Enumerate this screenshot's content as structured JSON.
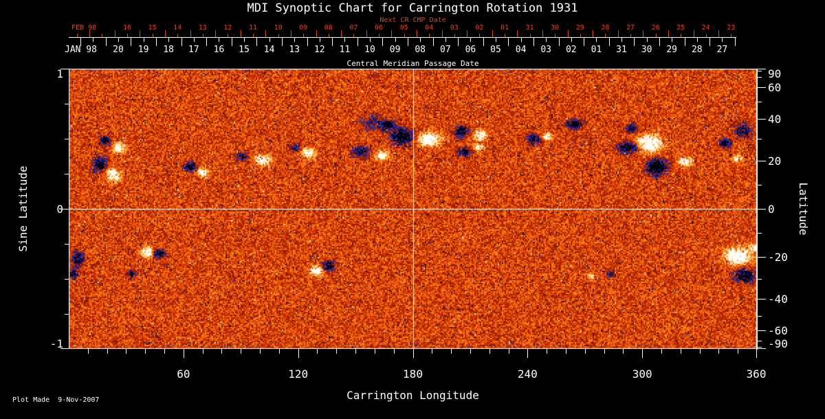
{
  "title": "MDI Synoptic Chart for Carrington Rotation 1931",
  "colors": {
    "background": "#000000",
    "accent_red": "#e2461c",
    "text": "#ffffff",
    "crosshair": "#ffffff"
  },
  "top_axis": {
    "label": "Next CR CMP Date",
    "month": "FEB 98",
    "dates": [
      "16",
      "15",
      "14",
      "13",
      "12",
      "11",
      "10",
      "09",
      "08",
      "07",
      "06",
      "05",
      "04",
      "03",
      "02",
      "01",
      "31",
      "30",
      "29",
      "28",
      "27",
      "26",
      "25",
      "24",
      "23"
    ]
  },
  "cmp_axis": {
    "label": "Central Meridian Passage Date",
    "month": "JAN 98",
    "dates": [
      "20",
      "19",
      "18",
      "17",
      "16",
      "15",
      "14",
      "13",
      "12",
      "11",
      "10",
      "09",
      "08",
      "07",
      "06",
      "05",
      "04",
      "03",
      "02",
      "01",
      "31",
      "30",
      "29",
      "28",
      "27"
    ]
  },
  "left_axis": {
    "label": "Sine Latitude",
    "ticks": [
      "1",
      "0",
      "-1"
    ]
  },
  "right_axis": {
    "label": "Latitude",
    "ticks": [
      "90",
      "60",
      "40",
      "20",
      "0",
      "-20",
      "-40",
      "-60",
      "-90"
    ]
  },
  "bottom_axis": {
    "label": "Carrington Longitude",
    "ticks": [
      "60",
      "120",
      "180",
      "240",
      "300",
      "360"
    ]
  },
  "footer": {
    "note": "Plot Made  9-Nov-2007"
  },
  "chart_data": {
    "type": "heatmap",
    "title": "MDI Synoptic Chart for Carrington Rotation 1931",
    "xlabel": "Carrington Longitude",
    "ylabel_left": "Sine Latitude",
    "ylabel_right": "Latitude",
    "x_range_deg": [
      0,
      360
    ],
    "y_range_sine_lat": [
      -1,
      1
    ],
    "x_major_ticks_deg": [
      60,
      120,
      180,
      240,
      300,
      360
    ],
    "right_major_ticks_lat": [
      90,
      60,
      40,
      20,
      0,
      -20,
      -40,
      -60,
      -90
    ],
    "crosshair": {
      "vertical_line_lon_deg": 180,
      "horizontal_line_sine_lat": 0
    },
    "field": "line-of-sight photospheric magnetic flux; orange/red granular noise background, white = positive polarity plage, dark blue/black = negative polarity",
    "palette": {
      "strong_negative": [
        "#000006",
        "#0b0b3e",
        "#1c1c80",
        "#3030a8"
      ],
      "quiet_sun": [
        "#8a1600",
        "#a32000",
        "#bd2b00",
        "#d23a02",
        "#e24b07",
        "#ee5d0d",
        "#f66f13",
        "#fb831c",
        "#ffa02e"
      ],
      "strong_positive": [
        "#ffbf55",
        "#ffd98a",
        "#ffecc0",
        "#fff8e8",
        "#ffffff"
      ]
    },
    "active_regions": [
      {
        "lon": 19,
        "sine_lat": 0.49,
        "polarity": "negative",
        "strength": 1.0,
        "half_width_deg": 2.5,
        "half_height_sine": 0.03
      },
      {
        "lon": 26,
        "sine_lat": 0.44,
        "polarity": "positive",
        "strength": 1.05,
        "half_width_deg": 2.9,
        "half_height_sine": 0.03
      },
      {
        "lon": 16,
        "sine_lat": 0.32,
        "polarity": "negative",
        "strength": 1.1,
        "half_width_deg": 3.2,
        "half_height_sine": 0.044
      },
      {
        "lon": 23,
        "sine_lat": 0.25,
        "polarity": "positive",
        "strength": 1.1,
        "half_width_deg": 3.2,
        "half_height_sine": 0.04
      },
      {
        "lon": 63,
        "sine_lat": 0.3,
        "polarity": "negative",
        "strength": 0.95,
        "half_width_deg": 2.9,
        "half_height_sine": 0.03
      },
      {
        "lon": 70,
        "sine_lat": 0.27,
        "polarity": "positive",
        "strength": 0.95,
        "half_width_deg": 2.9,
        "half_height_sine": 0.03
      },
      {
        "lon": 90,
        "sine_lat": 0.37,
        "polarity": "negative",
        "strength": 0.8,
        "half_width_deg": 2.5,
        "half_height_sine": 0.025
      },
      {
        "lon": 101,
        "sine_lat": 0.35,
        "polarity": "positive",
        "strength": 1.05,
        "half_width_deg": 3.6,
        "half_height_sine": 0.034
      },
      {
        "lon": 118,
        "sine_lat": 0.44,
        "polarity": "negative",
        "strength": 0.7,
        "half_width_deg": 2.5,
        "half_height_sine": 0.025
      },
      {
        "lon": 125,
        "sine_lat": 0.4,
        "polarity": "positive",
        "strength": 1.05,
        "half_width_deg": 3.2,
        "half_height_sine": 0.032
      },
      {
        "lon": 152,
        "sine_lat": 0.41,
        "polarity": "negative",
        "strength": 0.8,
        "half_width_deg": 4.0,
        "half_height_sine": 0.038
      },
      {
        "lon": 158,
        "sine_lat": 0.62,
        "polarity": "negative",
        "strength": 0.45,
        "half_width_deg": 6.0,
        "half_height_sine": 0.05
      },
      {
        "lon": 166,
        "sine_lat": 0.6,
        "polarity": "negative",
        "strength": 0.85,
        "half_width_deg": 4.0,
        "half_height_sine": 0.035
      },
      {
        "lon": 174,
        "sine_lat": 0.52,
        "polarity": "negative",
        "strength": 1.25,
        "half_width_deg": 5.0,
        "half_height_sine": 0.05
      },
      {
        "lon": 163,
        "sine_lat": 0.38,
        "polarity": "positive",
        "strength": 0.9,
        "half_width_deg": 3.2,
        "half_height_sine": 0.032
      },
      {
        "lon": 188,
        "sine_lat": 0.5,
        "polarity": "positive",
        "strength": 1.2,
        "half_width_deg": 5.4,
        "half_height_sine": 0.045
      },
      {
        "lon": 205,
        "sine_lat": 0.56,
        "polarity": "negative",
        "strength": 1.0,
        "half_width_deg": 3.6,
        "half_height_sine": 0.034
      },
      {
        "lon": 215,
        "sine_lat": 0.53,
        "polarity": "positive",
        "strength": 1.0,
        "half_width_deg": 3.2,
        "half_height_sine": 0.034
      },
      {
        "lon": 206,
        "sine_lat": 0.41,
        "polarity": "negative",
        "strength": 0.9,
        "half_width_deg": 3.2,
        "half_height_sine": 0.03
      },
      {
        "lon": 214,
        "sine_lat": 0.44,
        "polarity": "positive",
        "strength": 0.8,
        "half_width_deg": 2.5,
        "half_height_sine": 0.025
      },
      {
        "lon": 243,
        "sine_lat": 0.5,
        "polarity": "negative",
        "strength": 0.9,
        "half_width_deg": 3.2,
        "half_height_sine": 0.034
      },
      {
        "lon": 249,
        "sine_lat": 0.52,
        "polarity": "positive",
        "strength": 0.85,
        "half_width_deg": 2.5,
        "half_height_sine": 0.025
      },
      {
        "lon": 264,
        "sine_lat": 0.61,
        "polarity": "negative",
        "strength": 1.0,
        "half_width_deg": 4.3,
        "half_height_sine": 0.03
      },
      {
        "lon": 292,
        "sine_lat": 0.44,
        "polarity": "negative",
        "strength": 1.1,
        "half_width_deg": 5.0,
        "half_height_sine": 0.034
      },
      {
        "lon": 303,
        "sine_lat": 0.47,
        "polarity": "positive",
        "strength": 1.3,
        "half_width_deg": 5.8,
        "half_height_sine": 0.054
      },
      {
        "lon": 307,
        "sine_lat": 0.3,
        "polarity": "negative",
        "strength": 1.35,
        "half_width_deg": 4.7,
        "half_height_sine": 0.052
      },
      {
        "lon": 322,
        "sine_lat": 0.34,
        "polarity": "positive",
        "strength": 0.85,
        "half_width_deg": 3.6,
        "half_height_sine": 0.03
      },
      {
        "lon": 294,
        "sine_lat": 0.58,
        "polarity": "negative",
        "strength": 0.7,
        "half_width_deg": 3.2,
        "half_height_sine": 0.03
      },
      {
        "lon": 343,
        "sine_lat": 0.47,
        "polarity": "negative",
        "strength": 0.9,
        "half_width_deg": 2.9,
        "half_height_sine": 0.034
      },
      {
        "lon": 349,
        "sine_lat": 0.36,
        "polarity": "positive",
        "strength": 0.8,
        "half_width_deg": 2.2,
        "half_height_sine": 0.025
      },
      {
        "lon": 352,
        "sine_lat": 0.56,
        "polarity": "negative",
        "strength": 0.7,
        "half_width_deg": 4.3,
        "half_height_sine": 0.05
      },
      {
        "lon": 4,
        "sine_lat": -0.35,
        "polarity": "negative",
        "strength": 0.9,
        "half_width_deg": 2.9,
        "half_height_sine": 0.05
      },
      {
        "lon": 2,
        "sine_lat": -0.46,
        "polarity": "negative",
        "strength": 0.8,
        "half_width_deg": 2.2,
        "half_height_sine": 0.03
      },
      {
        "lon": 41,
        "sine_lat": -0.3,
        "polarity": "positive",
        "strength": 1.1,
        "half_width_deg": 3.2,
        "half_height_sine": 0.034
      },
      {
        "lon": 47,
        "sine_lat": -0.31,
        "polarity": "negative",
        "strength": 1.0,
        "half_width_deg": 2.9,
        "half_height_sine": 0.03
      },
      {
        "lon": 32,
        "sine_lat": -0.46,
        "polarity": "negative",
        "strength": 0.8,
        "half_width_deg": 1.8,
        "half_height_sine": 0.025
      },
      {
        "lon": 129,
        "sine_lat": -0.44,
        "polarity": "positive",
        "strength": 1.1,
        "half_width_deg": 3.2,
        "half_height_sine": 0.034
      },
      {
        "lon": 135,
        "sine_lat": -0.4,
        "polarity": "negative",
        "strength": 1.0,
        "half_width_deg": 3.2,
        "half_height_sine": 0.034
      },
      {
        "lon": 283,
        "sine_lat": -0.46,
        "polarity": "negative",
        "strength": 0.7,
        "half_width_deg": 2.2,
        "half_height_sine": 0.025
      },
      {
        "lon": 272,
        "sine_lat": -0.48,
        "polarity": "positive",
        "strength": 0.6,
        "half_width_deg": 1.8,
        "half_height_sine": 0.02
      },
      {
        "lon": 349,
        "sine_lat": -0.33,
        "polarity": "positive",
        "strength": 1.35,
        "half_width_deg": 5.8,
        "half_height_sine": 0.054
      },
      {
        "lon": 353,
        "sine_lat": -0.47,
        "polarity": "negative",
        "strength": 1.25,
        "half_width_deg": 4.7,
        "half_height_sine": 0.044
      },
      {
        "lon": 358,
        "sine_lat": -0.28,
        "polarity": "positive",
        "strength": 0.8,
        "half_width_deg": 2.5,
        "half_height_sine": 0.025
      }
    ]
  }
}
